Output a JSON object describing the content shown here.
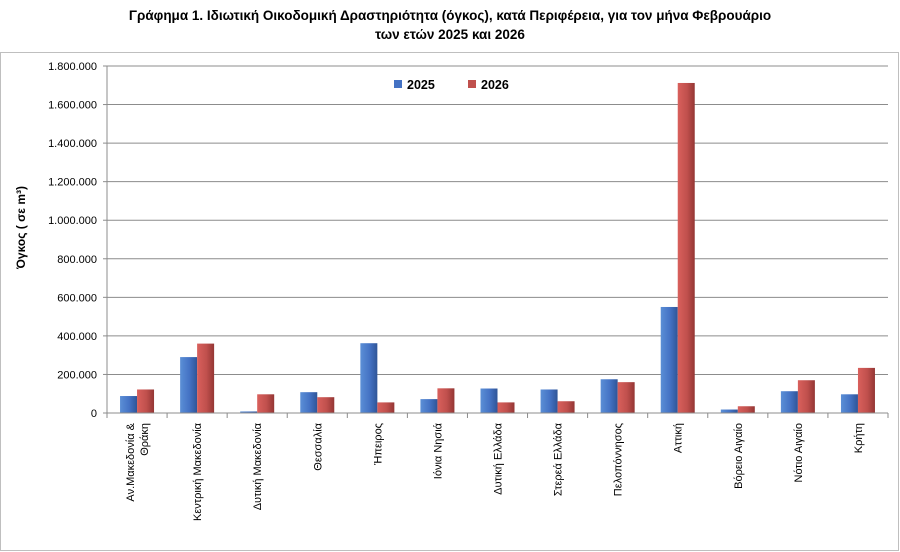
{
  "title_line1": "Γράφημα 1.  Ιδιωτική Οικοδομική Δραστηριότητα (όγκος), κατά Περιφέρεια, για τον μήνα Φεβρουάριο",
  "title_line2": "των ετών 2025 και 2026",
  "chart_data": {
    "type": "bar",
    "title": "Γράφημα 1.  Ιδιωτική Οικοδομική Δραστηριότητα (όγκος), κατά Περιφέρεια, για τον μήνα Φεβρουάριο των ετών 2025 και 2026",
    "ylabel": "Όγκος ( σε  m³)",
    "xlabel": "",
    "ylim": [
      0,
      1800000
    ],
    "yticks": [
      0,
      200000,
      400000,
      600000,
      800000,
      1000000,
      1200000,
      1400000,
      1600000,
      1800000
    ],
    "ytick_labels": [
      "0",
      "200.000",
      "400.000",
      "600.000",
      "800.000",
      "1.000.000",
      "1.200.000",
      "1.400.000",
      "1.600.000",
      "1.800.000"
    ],
    "grid": true,
    "legend_position": "top-center",
    "categories": [
      "Αν.Μακεδονία & Θράκη",
      "Κεντρική Μακεδονία",
      "Δυτική Μακεδονία",
      "Θεσσαλία",
      "Ήπειρος",
      "Ιόνια Νησιά",
      "Δυτική Ελλάδα",
      "Στερεά Ελλάδα",
      "Πελοπόννησος",
      "Αττική",
      "Βόρειο Αιγαίο",
      "Νότιο Αιγαίο",
      "Κρήτη"
    ],
    "series": [
      {
        "name": "2025",
        "color": "#4472c4",
        "values": [
          88000,
          290000,
          8000,
          108000,
          362000,
          72000,
          127000,
          122000,
          175000,
          550000,
          18000,
          113000,
          97000
        ]
      },
      {
        "name": "2026",
        "color": "#c0504d",
        "values": [
          122000,
          360000,
          97000,
          82000,
          55000,
          128000,
          55000,
          61000,
          160000,
          1712000,
          35000,
          170000,
          234000
        ]
      }
    ]
  }
}
